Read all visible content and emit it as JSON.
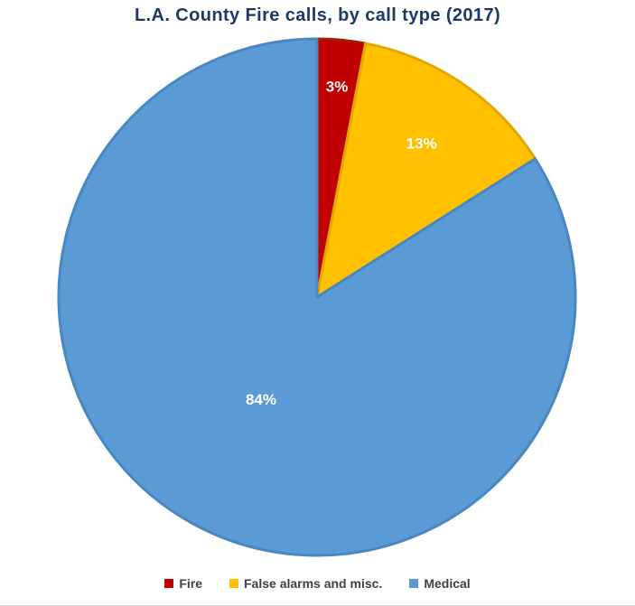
{
  "chart_data": {
    "type": "pie",
    "title": "L.A. County Fire calls, by call type (2017)",
    "categories": [
      "Fire",
      "False alarms and misc.",
      "Medical"
    ],
    "values": [
      3,
      13,
      84
    ],
    "labels": [
      "3%",
      "13%",
      "84%"
    ],
    "colors": [
      "#c00000",
      "#ffc000",
      "#5b9bd5"
    ],
    "edge_colors": [
      "#a61c00",
      "#e0a800",
      "#4a86c0"
    ],
    "legend_position": "bottom",
    "start_angle_deg": 0,
    "direction": "clockwise"
  }
}
